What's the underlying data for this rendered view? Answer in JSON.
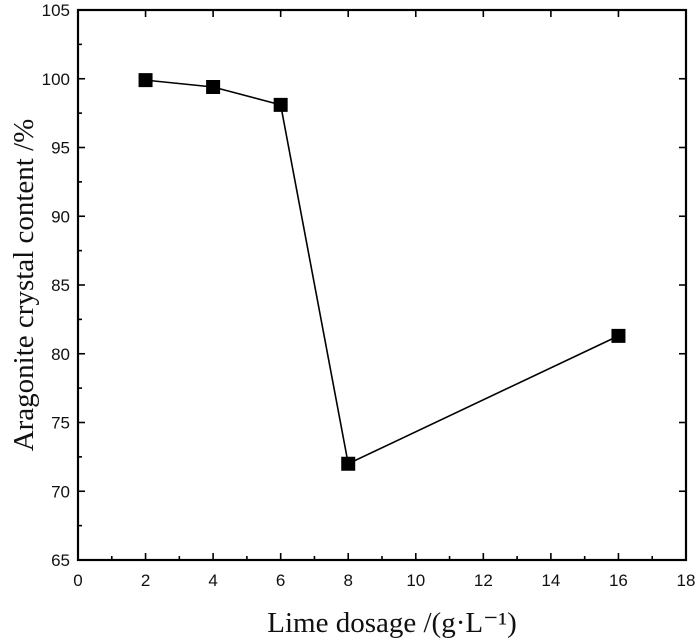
{
  "chart_data": {
    "type": "line",
    "xlabel": "Lime dosage /(g·L⁻¹)",
    "ylabel": "Aragonite crystal content /%",
    "xlim": [
      0,
      18
    ],
    "ylim": [
      65,
      105
    ],
    "xticks": [
      0,
      2,
      4,
      6,
      8,
      10,
      12,
      14,
      16,
      18
    ],
    "yticks": [
      65,
      70,
      75,
      80,
      85,
      90,
      95,
      100,
      105
    ],
    "grid": false,
    "legend": "none",
    "marker": "square",
    "line_color": "#000000",
    "marker_color": "#000000",
    "series": [
      {
        "x": [
          2,
          4,
          6,
          8,
          16
        ],
        "values": [
          99.9,
          99.4,
          98.1,
          72.0,
          81.3
        ]
      }
    ]
  }
}
